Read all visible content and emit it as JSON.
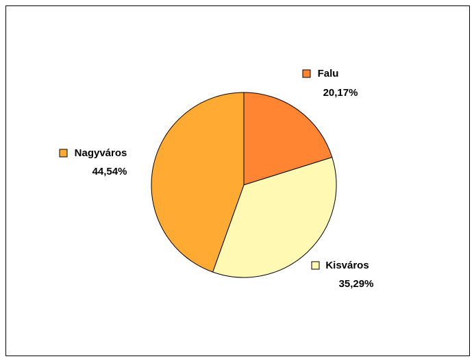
{
  "chart_data": {
    "type": "pie",
    "categories": [
      "Falu",
      "Kisváros",
      "Nagyváros"
    ],
    "values": [
      20.17,
      35.29,
      44.54
    ],
    "value_labels": [
      "20,17%",
      "35,29%",
      "44,54%"
    ],
    "colors": [
      "#ff8533",
      "#fff9b3",
      "#ffaa33"
    ]
  }
}
